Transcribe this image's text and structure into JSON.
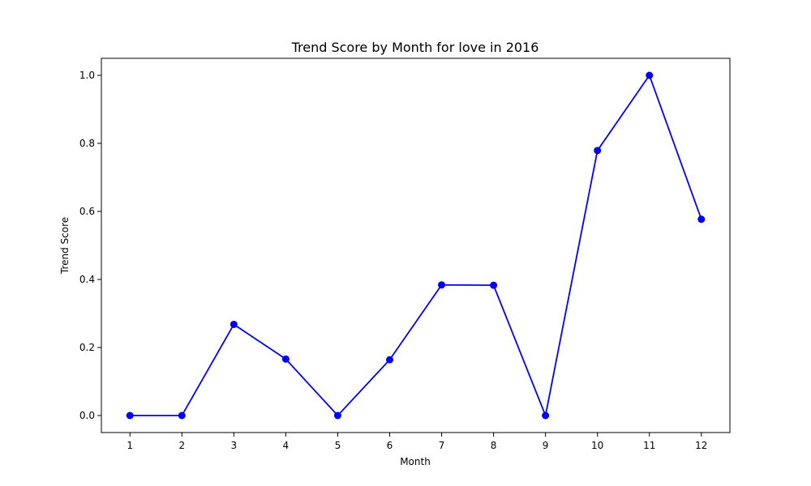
{
  "chart_data": {
    "type": "line",
    "title": "Trend Score by Month for love in 2016",
    "xlabel": "Month",
    "ylabel": "Trend Score",
    "x": [
      1,
      2,
      3,
      4,
      5,
      6,
      7,
      8,
      9,
      10,
      11,
      12
    ],
    "x_tick_labels": [
      "1",
      "2",
      "3",
      "4",
      "5",
      "6",
      "7",
      "8",
      "9",
      "10",
      "11",
      "12"
    ],
    "y_ticks": [
      0.0,
      0.2,
      0.4,
      0.6,
      0.8,
      1.0
    ],
    "y_tick_labels": [
      "0.0",
      "0.2",
      "0.4",
      "0.6",
      "0.8",
      "1.0"
    ],
    "ylim": [
      -0.05,
      1.05
    ],
    "xlim": [
      0.45,
      12.55
    ],
    "series": [
      {
        "values": [
          0.0,
          0.0,
          0.268,
          0.166,
          0.0,
          0.164,
          0.384,
          0.383,
          0.0,
          0.779,
          1.0,
          0.577
        ],
        "color": "#0000ff",
        "marker": "circle"
      }
    ],
    "grid": false,
    "legend": "none"
  }
}
